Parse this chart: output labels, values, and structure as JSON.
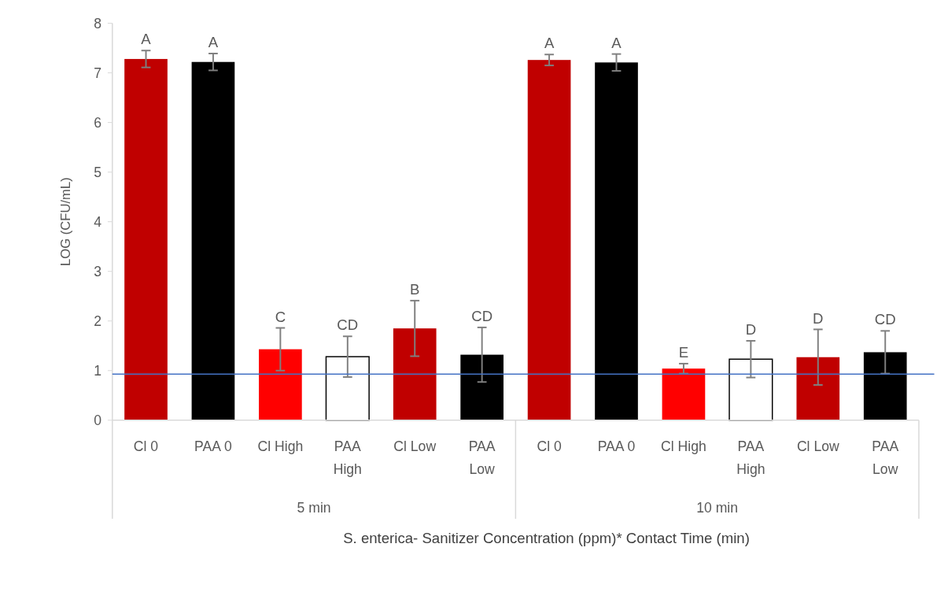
{
  "chart_data": {
    "type": "bar",
    "xlabel": "S. enterica- Sanitizer Concentration (ppm)* Contact Time (min)",
    "ylabel": "LOG (CFU/mL)",
    "categories": [
      "Cl 0",
      "PAA 0",
      "Cl High",
      "PAA High",
      "Cl Low",
      "PAA Low",
      "Cl 0",
      "PAA 0",
      "Cl High",
      "PAA High",
      "Cl Low",
      "PAA Low"
    ],
    "values": [
      7.28,
      7.22,
      1.43,
      1.28,
      1.85,
      1.32,
      7.26,
      7.21,
      1.04,
      1.23,
      1.27,
      1.37
    ],
    "errors": [
      0.17,
      0.17,
      0.43,
      0.41,
      0.56,
      0.55,
      0.11,
      0.17,
      0.1,
      0.37,
      0.56,
      0.43
    ],
    "colors": [
      "#c00000",
      "#000000",
      "#ff0000",
      "#ffffff",
      "#c00000",
      "#000000",
      "#c00000",
      "#000000",
      "#ff0000",
      "#ffffff",
      "#c00000",
      "#000000"
    ],
    "value_labels": [
      "A",
      "A",
      "C",
      "CD",
      "B",
      "CD",
      "A",
      "A",
      "E",
      "D",
      "D",
      "CD"
    ],
    "ylim": [
      0,
      8
    ],
    "yticks": [
      0,
      1,
      2,
      3,
      4,
      5,
      6,
      7,
      8
    ],
    "grid": false,
    "ref_lines": [
      {
        "axis": "y",
        "value": 0.93,
        "color": "#4472c4"
      }
    ],
    "annotations": [
      "5 min",
      "10 min"
    ]
  }
}
